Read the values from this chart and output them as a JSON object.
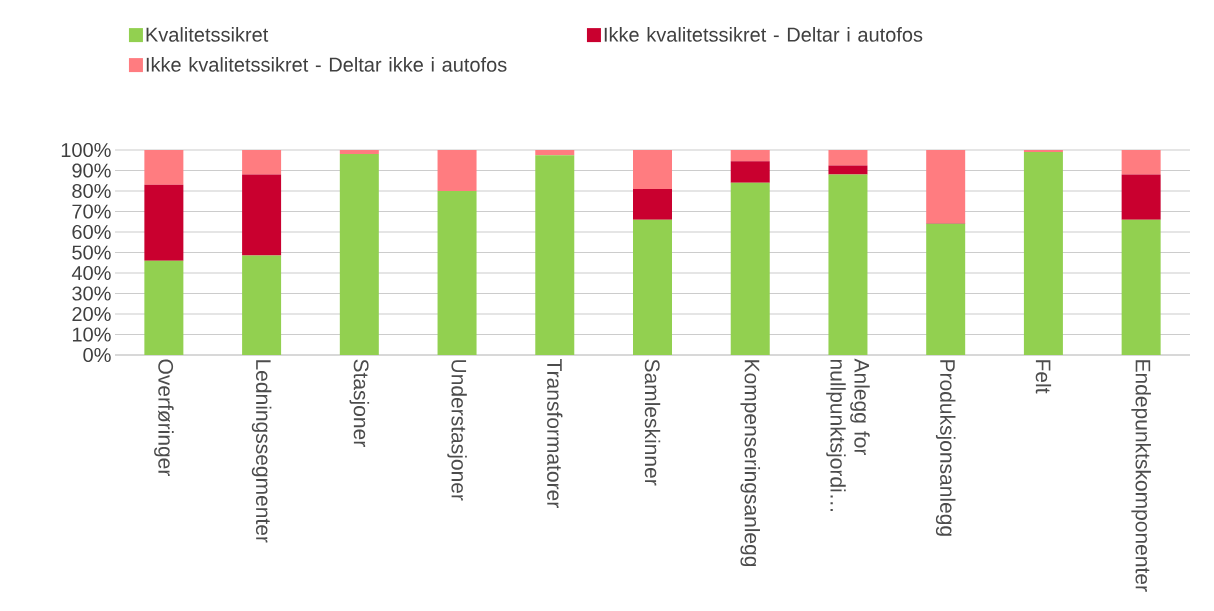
{
  "chart_data": {
    "type": "bar",
    "stacked": true,
    "categories": [
      "Overføringer",
      "Ledningssegmenter",
      "Stasjoner",
      "Understasjoner",
      "Transformatorer",
      "Samleskinner",
      "Kompenseringsanlegg",
      "Anlegg for nullpunktsjordi…",
      "Produksjonsanlegg",
      "Felt",
      "Endepunktskomponenter"
    ],
    "series": [
      {
        "name": "Kvalitetssikret",
        "color": "#92d050",
        "values": [
          46,
          48.5,
          98,
          80,
          97.5,
          66,
          84,
          88,
          64,
          99,
          66
        ]
      },
      {
        "name": "Ikke kvalitetssikret - Deltar i autofos",
        "color": "#c9002f",
        "values": [
          37,
          39.5,
          0,
          0,
          0,
          15,
          10.5,
          4.5,
          0.3,
          0,
          22
        ]
      },
      {
        "name": "Ikke kvalitetssikret - Deltar ikke i autofos",
        "color": "#ff7c80",
        "values": [
          17,
          12,
          2,
          20,
          2.5,
          19,
          5.5,
          7.5,
          35.7,
          1,
          12
        ]
      }
    ],
    "ylim": [
      0,
      100
    ],
    "yticks": [
      {
        "value": 0,
        "label": "0%"
      },
      {
        "value": 10,
        "label": "10%"
      },
      {
        "value": 20,
        "label": "20%"
      },
      {
        "value": 30,
        "label": "30%"
      },
      {
        "value": 40,
        "label": "40%"
      },
      {
        "value": 50,
        "label": "50%"
      },
      {
        "value": 60,
        "label": "60%"
      },
      {
        "value": 70,
        "label": "70%"
      },
      {
        "value": 80,
        "label": "80%"
      },
      {
        "value": 90,
        "label": "90%"
      },
      {
        "value": 100,
        "label": "100%"
      }
    ],
    "grid": "y",
    "legend": "top"
  }
}
